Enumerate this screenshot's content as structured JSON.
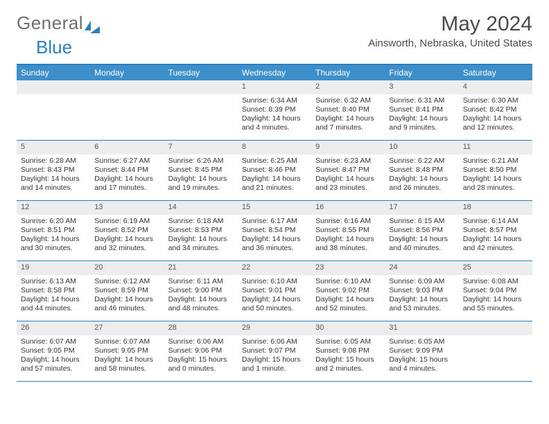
{
  "logo": {
    "text1": "General",
    "text2": "Blue"
  },
  "header": {
    "month_title": "May 2024",
    "location": "Ainsworth, Nebraska, United States"
  },
  "colors": {
    "accent": "#2a7ec2",
    "header_bg": "#3d8fc9",
    "daynum_bg": "#ededed",
    "logo_grey": "#6d6e71"
  },
  "day_headers": [
    "Sunday",
    "Monday",
    "Tuesday",
    "Wednesday",
    "Thursday",
    "Friday",
    "Saturday"
  ],
  "weeks": [
    [
      null,
      null,
      null,
      {
        "n": "1",
        "sr": "6:34 AM",
        "ss": "8:39 PM",
        "dl": "14 hours and 4 minutes."
      },
      {
        "n": "2",
        "sr": "6:32 AM",
        "ss": "8:40 PM",
        "dl": "14 hours and 7 minutes."
      },
      {
        "n": "3",
        "sr": "6:31 AM",
        "ss": "8:41 PM",
        "dl": "14 hours and 9 minutes."
      },
      {
        "n": "4",
        "sr": "6:30 AM",
        "ss": "8:42 PM",
        "dl": "14 hours and 12 minutes."
      }
    ],
    [
      {
        "n": "5",
        "sr": "6:28 AM",
        "ss": "8:43 PM",
        "dl": "14 hours and 14 minutes."
      },
      {
        "n": "6",
        "sr": "6:27 AM",
        "ss": "8:44 PM",
        "dl": "14 hours and 17 minutes."
      },
      {
        "n": "7",
        "sr": "6:26 AM",
        "ss": "8:45 PM",
        "dl": "14 hours and 19 minutes."
      },
      {
        "n": "8",
        "sr": "6:25 AM",
        "ss": "8:46 PM",
        "dl": "14 hours and 21 minutes."
      },
      {
        "n": "9",
        "sr": "6:23 AM",
        "ss": "8:47 PM",
        "dl": "14 hours and 23 minutes."
      },
      {
        "n": "10",
        "sr": "6:22 AM",
        "ss": "8:48 PM",
        "dl": "14 hours and 26 minutes."
      },
      {
        "n": "11",
        "sr": "6:21 AM",
        "ss": "8:50 PM",
        "dl": "14 hours and 28 minutes."
      }
    ],
    [
      {
        "n": "12",
        "sr": "6:20 AM",
        "ss": "8:51 PM",
        "dl": "14 hours and 30 minutes."
      },
      {
        "n": "13",
        "sr": "6:19 AM",
        "ss": "8:52 PM",
        "dl": "14 hours and 32 minutes."
      },
      {
        "n": "14",
        "sr": "6:18 AM",
        "ss": "8:53 PM",
        "dl": "14 hours and 34 minutes."
      },
      {
        "n": "15",
        "sr": "6:17 AM",
        "ss": "8:54 PM",
        "dl": "14 hours and 36 minutes."
      },
      {
        "n": "16",
        "sr": "6:16 AM",
        "ss": "8:55 PM",
        "dl": "14 hours and 38 minutes."
      },
      {
        "n": "17",
        "sr": "6:15 AM",
        "ss": "8:56 PM",
        "dl": "14 hours and 40 minutes."
      },
      {
        "n": "18",
        "sr": "6:14 AM",
        "ss": "8:57 PM",
        "dl": "14 hours and 42 minutes."
      }
    ],
    [
      {
        "n": "19",
        "sr": "6:13 AM",
        "ss": "8:58 PM",
        "dl": "14 hours and 44 minutes."
      },
      {
        "n": "20",
        "sr": "6:12 AM",
        "ss": "8:59 PM",
        "dl": "14 hours and 46 minutes."
      },
      {
        "n": "21",
        "sr": "6:11 AM",
        "ss": "9:00 PM",
        "dl": "14 hours and 48 minutes."
      },
      {
        "n": "22",
        "sr": "6:10 AM",
        "ss": "9:01 PM",
        "dl": "14 hours and 50 minutes."
      },
      {
        "n": "23",
        "sr": "6:10 AM",
        "ss": "9:02 PM",
        "dl": "14 hours and 52 minutes."
      },
      {
        "n": "24",
        "sr": "6:09 AM",
        "ss": "9:03 PM",
        "dl": "14 hours and 53 minutes."
      },
      {
        "n": "25",
        "sr": "6:08 AM",
        "ss": "9:04 PM",
        "dl": "14 hours and 55 minutes."
      }
    ],
    [
      {
        "n": "26",
        "sr": "6:07 AM",
        "ss": "9:05 PM",
        "dl": "14 hours and 57 minutes."
      },
      {
        "n": "27",
        "sr": "6:07 AM",
        "ss": "9:05 PM",
        "dl": "14 hours and 58 minutes."
      },
      {
        "n": "28",
        "sr": "6:06 AM",
        "ss": "9:06 PM",
        "dl": "15 hours and 0 minutes."
      },
      {
        "n": "29",
        "sr": "6:06 AM",
        "ss": "9:07 PM",
        "dl": "15 hours and 1 minute."
      },
      {
        "n": "30",
        "sr": "6:05 AM",
        "ss": "9:08 PM",
        "dl": "15 hours and 2 minutes."
      },
      {
        "n": "31",
        "sr": "6:05 AM",
        "ss": "9:09 PM",
        "dl": "15 hours and 4 minutes."
      },
      null
    ]
  ],
  "labels": {
    "sunrise_prefix": "Sunrise: ",
    "sunset_prefix": "Sunset: ",
    "daylight_prefix": "Daylight: "
  }
}
